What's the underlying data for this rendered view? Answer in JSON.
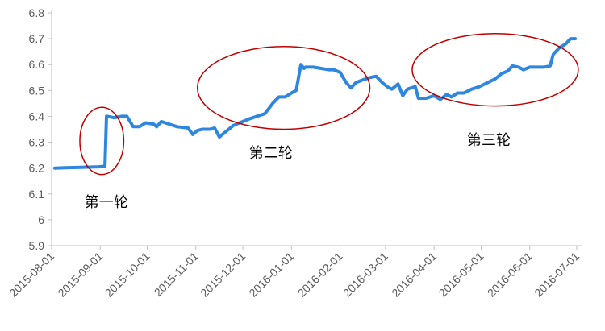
{
  "chart_data": {
    "type": "line",
    "title": "",
    "xlabel": "",
    "ylabel": "",
    "ylim": [
      5.9,
      6.8
    ],
    "yticks": [
      "5.9",
      "6",
      "6.1",
      "6.2",
      "6.3",
      "6.4",
      "6.5",
      "6.6",
      "6.7",
      "6.8"
    ],
    "xlim": [
      "2015-08-01",
      "2016-07-01"
    ],
    "xticks": [
      "2015-08-01",
      "2015-09-01",
      "2015-10-01",
      "2015-11-01",
      "2015-12-01",
      "2016-01-01",
      "2016-02-01",
      "2016-03-01",
      "2016-04-01",
      "2016-05-01",
      "2016-06-01",
      "2016-07-01"
    ],
    "grid": false,
    "line_color": "#2e86de",
    "highlight_color": "#c00000",
    "series": [
      {
        "points": [
          [
            "2015-08-03",
            6.2
          ],
          [
            "2015-08-10",
            6.201
          ],
          [
            "2015-08-20",
            6.203
          ],
          [
            "2015-08-31",
            6.205
          ],
          [
            "2015-09-04",
            6.207
          ],
          [
            "2015-09-05",
            6.4
          ],
          [
            "2015-09-10",
            6.395
          ],
          [
            "2015-09-15",
            6.4
          ],
          [
            "2015-09-18",
            6.4
          ],
          [
            "2015-09-22",
            6.36
          ],
          [
            "2015-09-26",
            6.36
          ],
          [
            "2015-09-30",
            6.375
          ],
          [
            "2015-10-05",
            6.37
          ],
          [
            "2015-10-07",
            6.36
          ],
          [
            "2015-10-10",
            6.38
          ],
          [
            "2015-10-15",
            6.37
          ],
          [
            "2015-10-20",
            6.36
          ],
          [
            "2015-10-27",
            6.355
          ],
          [
            "2015-10-30",
            6.33
          ],
          [
            "2015-11-02",
            6.345
          ],
          [
            "2015-11-05",
            6.35
          ],
          [
            "2015-11-10",
            6.35
          ],
          [
            "2015-11-13",
            6.355
          ],
          [
            "2015-11-16",
            6.32
          ],
          [
            "2015-11-20",
            6.34
          ],
          [
            "2015-11-25",
            6.365
          ],
          [
            "2015-12-01",
            6.38
          ],
          [
            "2015-12-05",
            6.39
          ],
          [
            "2015-12-10",
            6.4
          ],
          [
            "2015-12-15",
            6.41
          ],
          [
            "2015-12-20",
            6.45
          ],
          [
            "2015-12-24",
            6.475
          ],
          [
            "2015-12-28",
            6.475
          ],
          [
            "2016-01-01",
            6.49
          ],
          [
            "2016-01-04",
            6.5
          ],
          [
            "2016-01-07",
            6.6
          ],
          [
            "2016-01-09",
            6.585
          ],
          [
            "2016-01-10",
            6.59
          ],
          [
            "2016-01-15",
            6.59
          ],
          [
            "2016-01-20",
            6.585
          ],
          [
            "2016-01-25",
            6.58
          ],
          [
            "2016-01-28",
            6.58
          ],
          [
            "2016-02-01",
            6.57
          ],
          [
            "2016-02-05",
            6.53
          ],
          [
            "2016-02-08",
            6.51
          ],
          [
            "2016-02-11",
            6.53
          ],
          [
            "2016-02-15",
            6.54
          ],
          [
            "2016-02-20",
            6.55
          ],
          [
            "2016-02-24",
            6.555
          ],
          [
            "2016-02-28",
            6.53
          ],
          [
            "2016-03-02",
            6.515
          ],
          [
            "2016-03-05",
            6.505
          ],
          [
            "2016-03-09",
            6.525
          ],
          [
            "2016-03-12",
            6.48
          ],
          [
            "2016-03-15",
            6.505
          ],
          [
            "2016-03-20",
            6.515
          ],
          [
            "2016-03-22",
            6.47
          ],
          [
            "2016-03-27",
            6.47
          ],
          [
            "2016-04-01",
            6.48
          ],
          [
            "2016-04-05",
            6.465
          ],
          [
            "2016-04-09",
            6.485
          ],
          [
            "2016-04-12",
            6.475
          ],
          [
            "2016-04-16",
            6.49
          ],
          [
            "2016-04-20",
            6.49
          ],
          [
            "2016-04-25",
            6.505
          ],
          [
            "2016-04-30",
            6.515
          ],
          [
            "2016-05-05",
            6.53
          ],
          [
            "2016-05-10",
            6.545
          ],
          [
            "2016-05-14",
            6.565
          ],
          [
            "2016-05-18",
            6.575
          ],
          [
            "2016-05-21",
            6.595
          ],
          [
            "2016-05-25",
            6.59
          ],
          [
            "2016-05-28",
            6.58
          ],
          [
            "2016-06-01",
            6.59
          ],
          [
            "2016-06-10",
            6.59
          ],
          [
            "2016-06-14",
            6.595
          ],
          [
            "2016-06-16",
            6.64
          ],
          [
            "2016-06-20",
            6.665
          ],
          [
            "2016-06-24",
            6.68
          ],
          [
            "2016-06-27",
            6.7
          ],
          [
            "2016-06-30",
            6.7
          ]
        ]
      }
    ],
    "annotations": [
      {
        "text": "第一轮",
        "x": "2015-08-22",
        "y": 6.05,
        "ellipse": {
          "cx": "2015-09-02",
          "cy": 6.305,
          "rx_days": 14,
          "ry": 0.13
        }
      },
      {
        "text": "第二轮",
        "x": "2015-12-05",
        "y": 6.24,
        "ellipse": {
          "cx": "2015-12-27",
          "cy": 6.51,
          "rx_days": 55,
          "ry": 0.16
        }
      },
      {
        "text": "第三轮",
        "x": "2016-04-22",
        "y": 6.29,
        "ellipse": {
          "cx": "2016-05-10",
          "cy": 6.58,
          "rx_days": 53,
          "ry": 0.14
        }
      }
    ]
  }
}
